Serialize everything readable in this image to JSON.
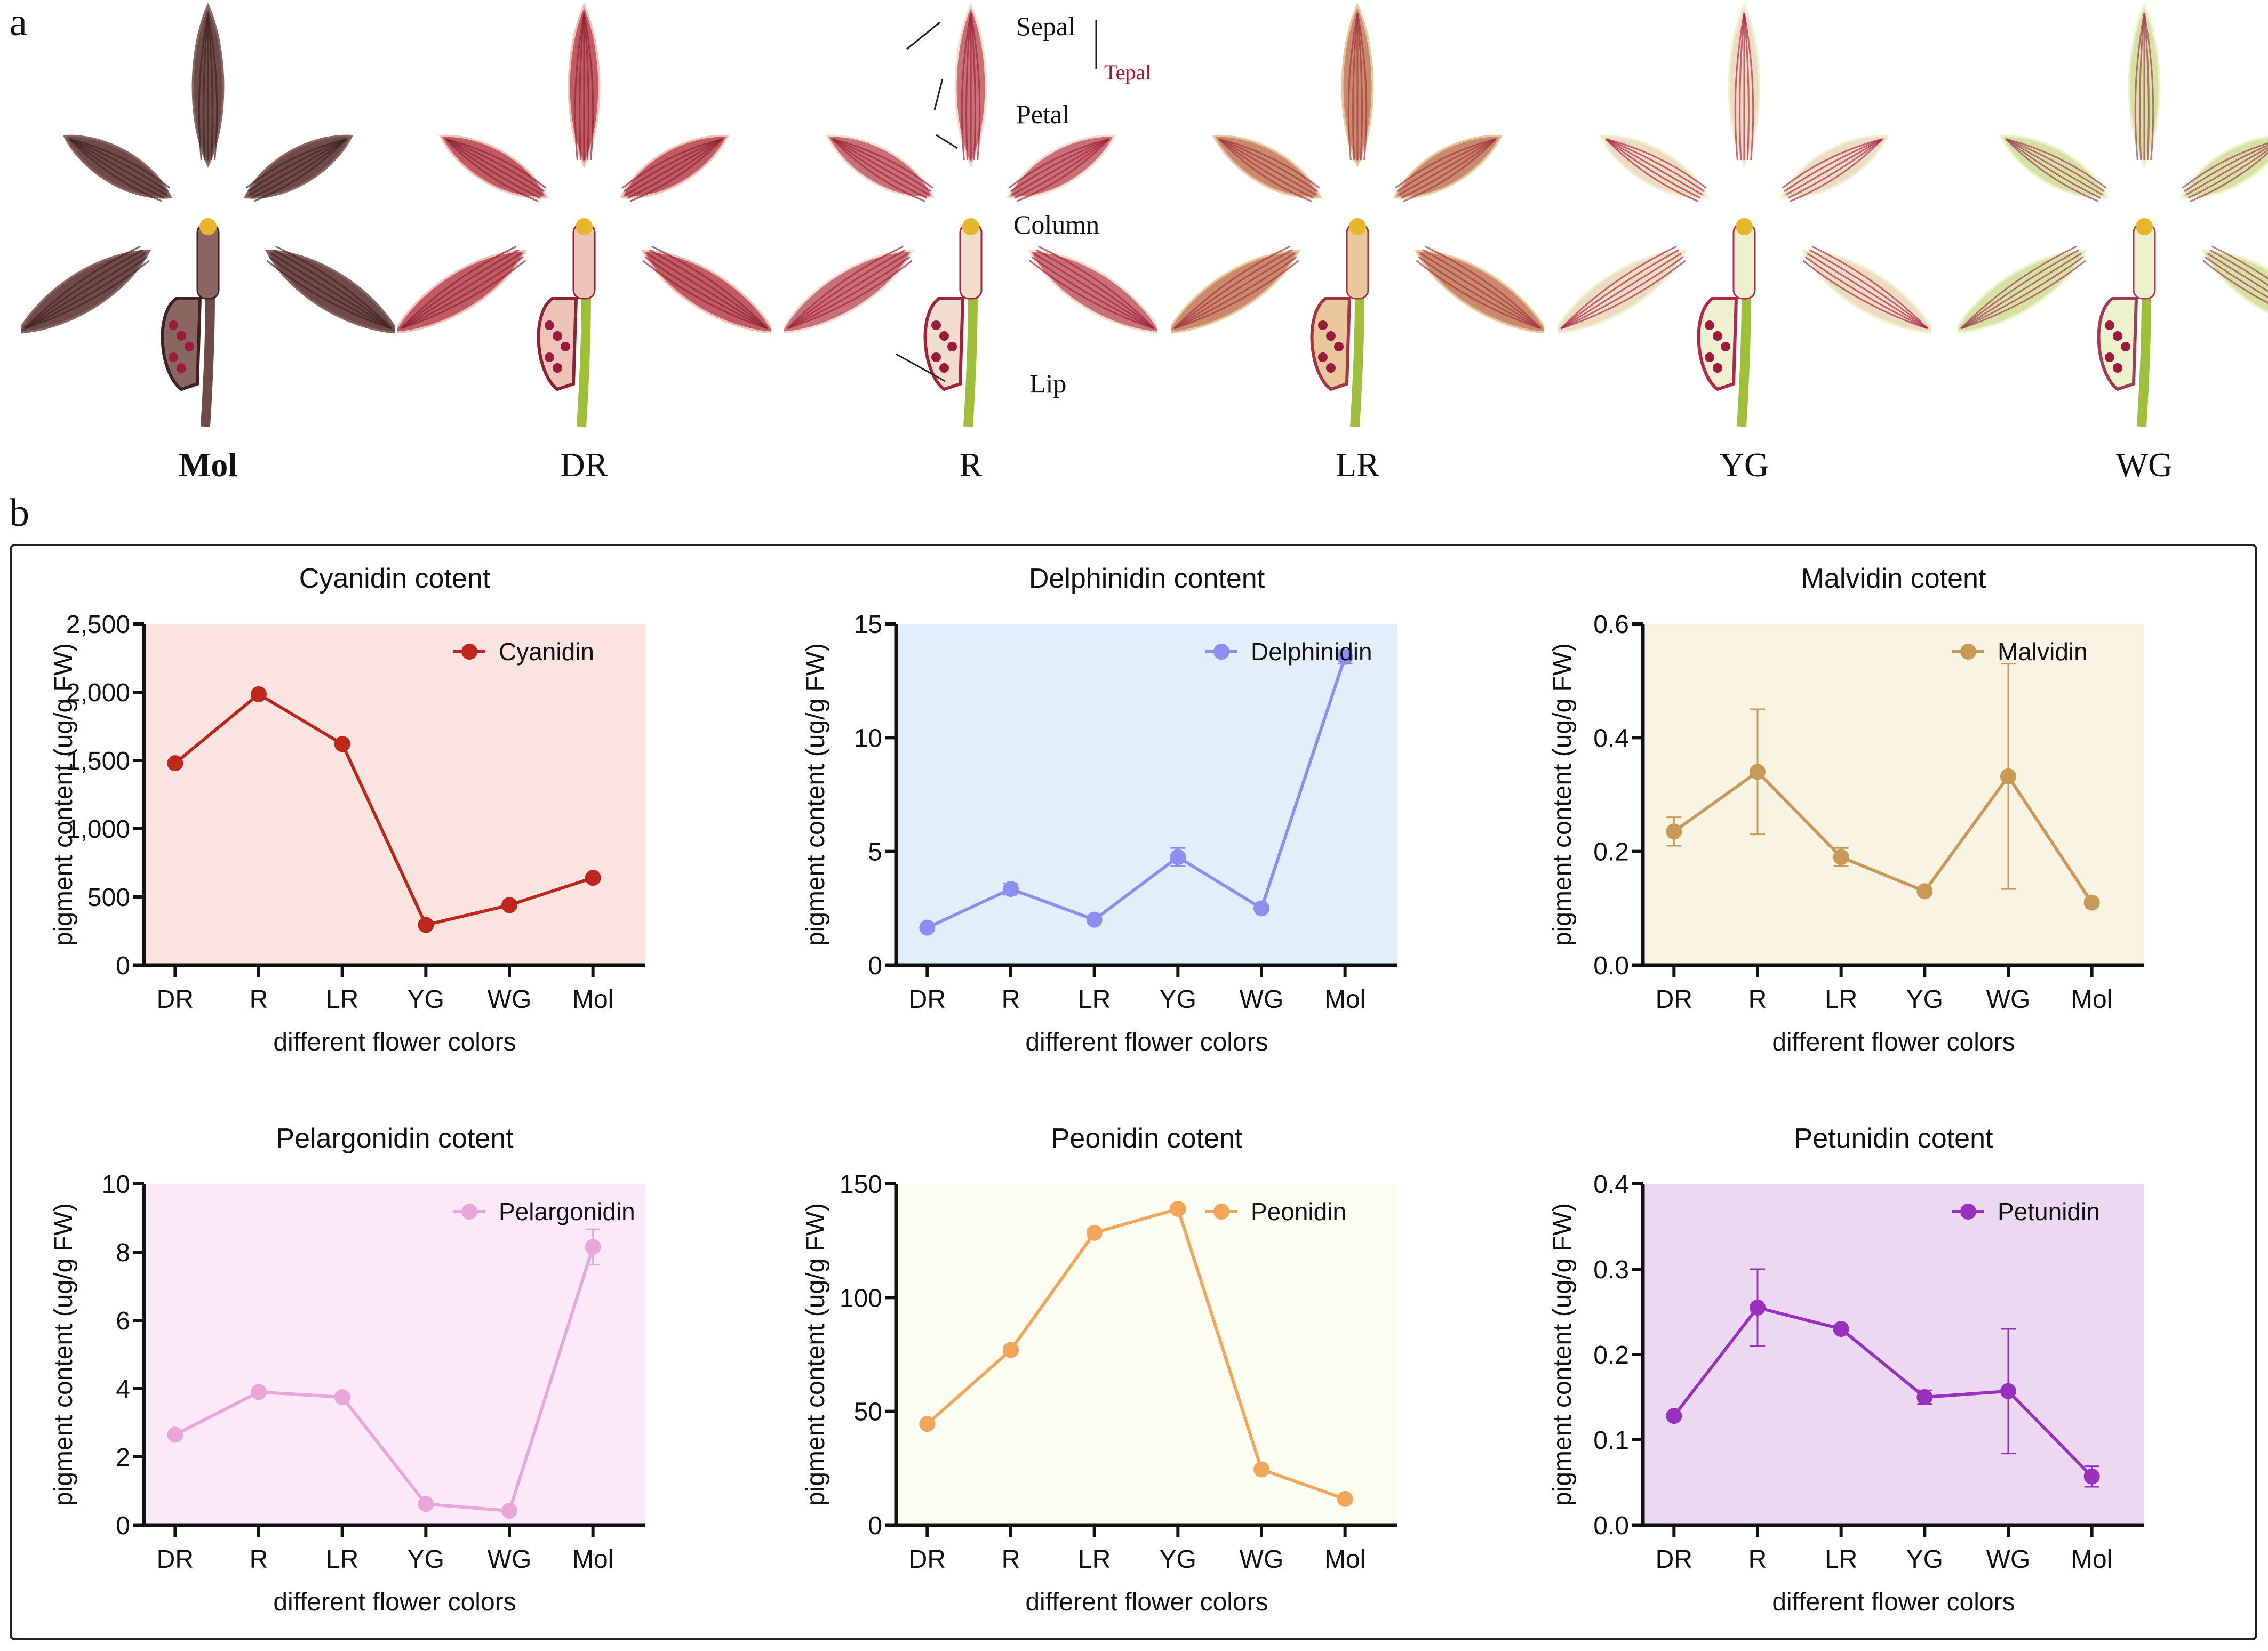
{
  "panel_a": {
    "letter": "a",
    "flowers": [
      {
        "label": "Mol",
        "bold": true
      },
      {
        "label": "DR",
        "bold": false
      },
      {
        "label": "R",
        "bold": false
      },
      {
        "label": "LR",
        "bold": false
      },
      {
        "label": "YG",
        "bold": false
      },
      {
        "label": "WG",
        "bold": false
      }
    ],
    "annotations": {
      "sepal": "Sepal",
      "petal": "Petal",
      "tepal": "Tepal",
      "column": "Column",
      "lip": "Lip"
    }
  },
  "panel_b": {
    "letter": "b"
  },
  "chart_data": [
    {
      "type": "line",
      "title": "Cyanidin cotent",
      "series_name": "Cyanidin",
      "color": "#c0271b",
      "bg": "#fbe3df",
      "categories": [
        "DR",
        "R",
        "LR",
        "YG",
        "WG",
        "Mol"
      ],
      "values": [
        1480,
        1985,
        1620,
        295,
        440,
        640
      ],
      "errors": [
        0,
        0,
        0,
        0,
        0,
        0
      ],
      "ylim": [
        0,
        2500
      ],
      "yticks": [
        0,
        500,
        1000,
        1500,
        2000,
        2500
      ],
      "ytick_labels": [
        "0",
        "500",
        "1,000",
        "1,500",
        "2,000",
        "2,500"
      ],
      "xlabel": "different flower colors",
      "ylabel": "pigment content (ug/g FW)",
      "legend": "top-right"
    },
    {
      "type": "line",
      "title": "Delphinidin content",
      "series_name": "Delphinidin",
      "color": "#8c8ff0",
      "bg": "#e3eefb",
      "categories": [
        "DR",
        "R",
        "LR",
        "YG",
        "WG",
        "Mol"
      ],
      "values": [
        1.65,
        3.35,
        2.0,
        4.75,
        2.5,
        13.55
      ],
      "errors": [
        0.05,
        0.25,
        0.05,
        0.4,
        0.05,
        0.3
      ],
      "ylim": [
        0,
        15
      ],
      "yticks": [
        0,
        5,
        10,
        15
      ],
      "ytick_labels": [
        "0",
        "5",
        "10",
        "15"
      ],
      "xlabel": "different flower colors",
      "ylabel": "pigment content (ug/g FW)",
      "legend": "top-right"
    },
    {
      "type": "line",
      "title": "Malvidin cotent",
      "series_name": "Malvidin",
      "color": "#c99a55",
      "bg": "#f8f3e2",
      "categories": [
        "DR",
        "R",
        "LR",
        "YG",
        "WG",
        "Mol"
      ],
      "values": [
        0.235,
        0.34,
        0.19,
        0.13,
        0.332,
        0.11
      ],
      "errors": [
        0.025,
        0.11,
        0.016,
        0.0,
        0.198,
        0.0
      ],
      "ylim": [
        0,
        0.6
      ],
      "yticks": [
        0,
        0.2,
        0.4,
        0.6
      ],
      "ytick_labels": [
        "0.0",
        "0.2",
        "0.4",
        "0.6"
      ],
      "xlabel": "different flower colors",
      "ylabel": "pigment content (ug/g FW)",
      "legend": "top-right"
    },
    {
      "type": "line",
      "title": "Pelargonidin cotent",
      "series_name": "Pelargonidin",
      "color": "#eaa6d9",
      "bg": "#fbe9f8",
      "categories": [
        "DR",
        "R",
        "LR",
        "YG",
        "WG",
        "Mol"
      ],
      "values": [
        2.65,
        3.9,
        3.75,
        0.62,
        0.42,
        8.15
      ],
      "errors": [
        0,
        0,
        0,
        0,
        0,
        0.52
      ],
      "ylim": [
        0,
        10
      ],
      "yticks": [
        0,
        2,
        4,
        6,
        8,
        10
      ],
      "ytick_labels": [
        "0",
        "2",
        "4",
        "6",
        "8",
        "10"
      ],
      "xlabel": "different flower colors",
      "ylabel": "pigment content (ug/g FW)",
      "legend": "top-right"
    },
    {
      "type": "line",
      "title": "Peonidin cotent",
      "series_name": "Peonidin",
      "color": "#f3a65a",
      "bg": "#fdfcf1",
      "categories": [
        "DR",
        "R",
        "LR",
        "YG",
        "WG",
        "Mol"
      ],
      "values": [
        44.5,
        77,
        128.5,
        139,
        24.5,
        11.5
      ],
      "errors": [
        0,
        1.5,
        1.5,
        1.5,
        0,
        0
      ],
      "ylim": [
        0,
        150
      ],
      "yticks": [
        0,
        50,
        100,
        150
      ],
      "ytick_labels": [
        "0",
        "50",
        "100",
        "150"
      ],
      "xlabel": "different flower colors",
      "ylabel": "pigment content (ug/g FW)",
      "legend": "top-right"
    },
    {
      "type": "line",
      "title": "Petunidin cotent",
      "series_name": "Petunidin",
      "color": "#9b2fc0",
      "bg": "#ead9f0",
      "categories": [
        "DR",
        "R",
        "LR",
        "YG",
        "WG",
        "Mol"
      ],
      "values": [
        0.128,
        0.255,
        0.23,
        0.15,
        0.157,
        0.057
      ],
      "errors": [
        0,
        0.045,
        0,
        0.008,
        0.073,
        0.012
      ],
      "ylim": [
        0,
        0.4
      ],
      "yticks": [
        0,
        0.1,
        0.2,
        0.3,
        0.4
      ],
      "ytick_labels": [
        "0.0",
        "0.1",
        "0.2",
        "0.3",
        "0.4"
      ],
      "xlabel": "different flower colors",
      "ylabel": "pigment content (ug/g FW)",
      "legend": "top-right"
    }
  ]
}
